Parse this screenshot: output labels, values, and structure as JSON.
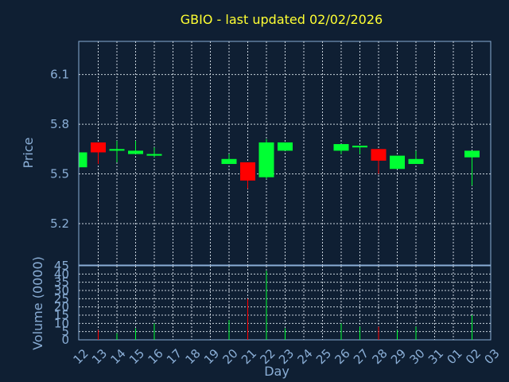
{
  "chart_data": {
    "type": "candlestick",
    "title": "GBIO - last updated 02/02/2026",
    "price_panel": {
      "ylabel": "Price",
      "ylim": [
        4.95,
        6.3
      ],
      "yticks": [
        "6.1",
        "5.8",
        "5.5",
        "5.2"
      ],
      "ytick_values": [
        6.1,
        5.8,
        5.5,
        5.2
      ],
      "grid": true
    },
    "volume_panel": {
      "ylabel": "Volume (0000)",
      "ylim": [
        0,
        45
      ],
      "yticks": [
        "45",
        "40",
        "35",
        "30",
        "25",
        "20",
        "15",
        "10",
        "5",
        "0"
      ],
      "ytick_values": [
        45,
        40,
        35,
        30,
        25,
        20,
        15,
        10,
        5,
        0
      ],
      "grid": true
    },
    "xlabel": "Day",
    "x_tick_labels": [
      "12",
      "13",
      "14",
      "15",
      "16",
      "17",
      "18",
      "19",
      "20",
      "21",
      "22",
      "23",
      "24",
      "25",
      "26",
      "27",
      "28",
      "29",
      "30",
      "31",
      "01",
      "02",
      "03"
    ],
    "candles": [
      {
        "day": "12",
        "open": 5.54,
        "close": 5.63,
        "high": 5.63,
        "low": 5.54,
        "volume": 0
      },
      {
        "day": "13",
        "open": 5.69,
        "close": 5.63,
        "high": 5.69,
        "low": 5.56,
        "volume": 6
      },
      {
        "day": "14",
        "open": 5.64,
        "close": 5.65,
        "high": 5.7,
        "low": 5.57,
        "volume": 4
      },
      {
        "day": "15",
        "open": 5.62,
        "close": 5.64,
        "high": 5.7,
        "low": 5.62,
        "volume": 7
      },
      {
        "day": "16",
        "open": 5.61,
        "close": 5.62,
        "high": 5.66,
        "low": 5.6,
        "volume": 10
      },
      {
        "day": "20",
        "open": 5.56,
        "close": 5.59,
        "high": 5.62,
        "low": 5.56,
        "volume": 12
      },
      {
        "day": "21",
        "open": 5.57,
        "close": 5.46,
        "high": 5.57,
        "low": 5.41,
        "volume": 25
      },
      {
        "day": "22",
        "open": 5.48,
        "close": 5.69,
        "high": 5.71,
        "low": 5.47,
        "volume": 42
      },
      {
        "day": "23",
        "open": 5.64,
        "close": 5.69,
        "high": 5.69,
        "low": 5.64,
        "volume": 7
      },
      {
        "day": "26",
        "open": 5.64,
        "close": 5.68,
        "high": 5.68,
        "low": 5.62,
        "volume": 10
      },
      {
        "day": "27",
        "open": 5.66,
        "close": 5.67,
        "high": 5.67,
        "low": 5.62,
        "volume": 8
      },
      {
        "day": "28",
        "open": 5.65,
        "close": 5.58,
        "high": 5.65,
        "low": 5.5,
        "volume": 8
      },
      {
        "day": "29",
        "open": 5.53,
        "close": 5.61,
        "high": 5.61,
        "low": 5.53,
        "volume": 6
      },
      {
        "day": "30",
        "open": 5.56,
        "close": 5.59,
        "high": 5.64,
        "low": 5.56,
        "volume": 8
      },
      {
        "day": "02",
        "open": 5.6,
        "close": 5.64,
        "high": 5.64,
        "low": 5.43,
        "volume": 15
      }
    ],
    "colors": {
      "background": "#0f1f33",
      "frame": "#8aaed6",
      "grid": "#c8d2dc",
      "up": "#00ff33",
      "down": "#ff0000",
      "title": "#ffff33",
      "text": "#8aaed6"
    }
  }
}
